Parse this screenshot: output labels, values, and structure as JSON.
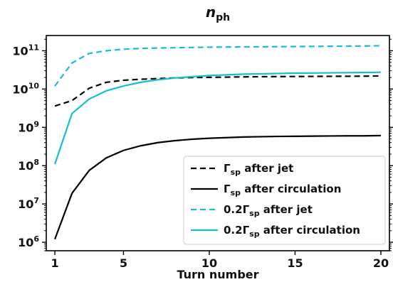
{
  "chart_data": {
    "type": "line",
    "title_main": "n",
    "title_sub": "ph",
    "xlabel": "Turn number",
    "ylabel": "",
    "xlim": [
      0.5,
      20.5
    ],
    "ylim": [
      600000,
      250000000000
    ],
    "y_scale": "log",
    "grid": false,
    "legend_position": "lower-right",
    "x_ticks": [
      1,
      5,
      10,
      15,
      20
    ],
    "x_tick_labels": [
      "1",
      "5",
      "10",
      "15",
      "20"
    ],
    "y_ticks": [
      {
        "value": 1000000,
        "base": "10",
        "exp": "6"
      },
      {
        "value": 10000000,
        "base": "10",
        "exp": "7"
      },
      {
        "value": 100000000,
        "base": "10",
        "exp": "8"
      },
      {
        "value": 1000000000,
        "base": "10",
        "exp": "9"
      },
      {
        "value": 10000000000,
        "base": "10",
        "exp": "10"
      },
      {
        "value": 100000000000,
        "base": "10",
        "exp": "11"
      }
    ],
    "x": [
      1,
      2,
      3,
      4,
      5,
      6,
      7,
      8,
      9,
      10,
      11,
      12,
      13,
      14,
      15,
      16,
      17,
      18,
      19,
      20
    ],
    "series": [
      {
        "legend_prefix": "Γ",
        "legend_sub": "sp",
        "legend_suffix": " after jet",
        "color": "#000000",
        "dash": "8,5",
        "values": [
          3600000000.0,
          5000000000.0,
          10500000000.0,
          15000000000.0,
          17000000000.0,
          18000000000.0,
          18800000000.0,
          19500000000.0,
          20000000000.0,
          20200000000.0,
          20500000000.0,
          20800000000.0,
          21000000000.0,
          21200000000.0,
          21300000000.0,
          21400000000.0,
          21500000000.0,
          21600000000.0,
          21700000000.0,
          22000000000.0
        ]
      },
      {
        "legend_prefix": "Γ",
        "legend_sub": "sp",
        "legend_suffix": " after circulation",
        "color": "#000000",
        "dash": "",
        "values": [
          1200000.0,
          19000000.0,
          75000000.0,
          160000000.0,
          250000000.0,
          330000000.0,
          400000000.0,
          450000000.0,
          490000000.0,
          520000000.0,
          540000000.0,
          560000000.0,
          570000000.0,
          580000000.0,
          585000000.0,
          590000000.0,
          595000000.0,
          600000000.0,
          600000000.0,
          610000000.0
        ]
      },
      {
        "legend_prefix": "0.2Γ",
        "legend_sub": "sp",
        "legend_suffix": " after jet",
        "color": "#17becf",
        "dash": "8,5",
        "values": [
          12000000000.0,
          48000000000.0,
          85000000000.0,
          100000000000.0,
          110000000000.0,
          115000000000.0,
          118000000000.0,
          120000000000.0,
          122000000000.0,
          124000000000.0,
          125000000000.0,
          126000000000.0,
          127000000000.0,
          128000000000.0,
          129000000000.0,
          130000000000.0,
          131000000000.0,
          132000000000.0,
          133000000000.0,
          135000000000.0
        ]
      },
      {
        "legend_prefix": "0.2Γ",
        "legend_sub": "sp",
        "legend_suffix": " after circulation",
        "color": "#17becf",
        "dash": "",
        "values": [
          110000000.0,
          2300000000.0,
          5500000000.0,
          9000000000.0,
          12000000000.0,
          15000000000.0,
          17500000000.0,
          19500000000.0,
          21000000000.0,
          22500000000.0,
          23500000000.0,
          24500000000.0,
          25000000000.0,
          25500000000.0,
          26000000000.0,
          26200000000.0,
          26500000000.0,
          26800000000.0,
          27000000000.0,
          27500000000.0
        ]
      }
    ]
  }
}
